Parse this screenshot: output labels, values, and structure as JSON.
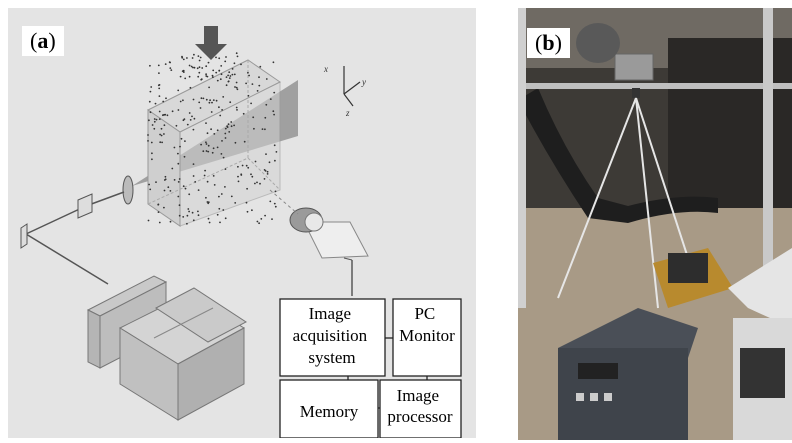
{
  "panels": {
    "a": {
      "label_open": "(",
      "label_letter": "a",
      "label_close": ")"
    },
    "b": {
      "label_open": "(",
      "label_letter": "b",
      "label_close": ")"
    }
  },
  "axes": {
    "x": "x",
    "y": "y",
    "z": "z"
  },
  "blocks": {
    "acquisition": [
      "Image",
      "acquisition",
      "system"
    ],
    "pc": [
      "PC",
      "Monitor"
    ],
    "memory": [
      "Memory"
    ],
    "processor": [
      "Image",
      "processor"
    ]
  }
}
